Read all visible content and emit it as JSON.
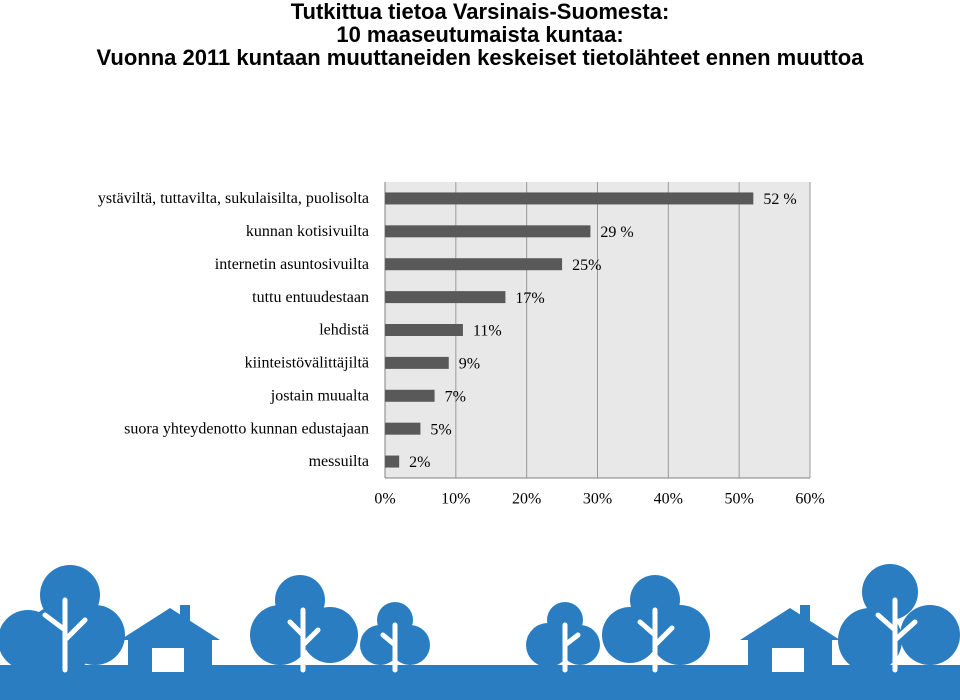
{
  "chart_data": {
    "type": "bar",
    "orientation": "horizontal",
    "title": [
      "Tutkittua tietoa Varsinais-Suomesta:",
      "10 maaseutumaista kuntaa:",
      "Vuonna 2011 kuntaan muuttaneiden keskeiset tietolähteet ennen muuttoa"
    ],
    "categories": [
      "ystäviltä, tuttavilta, sukulaisilta, puolisolta",
      "kunnan kotisivuilta",
      "internetin asuntosivuilta",
      "tuttu entuudestaan",
      "lehdistä",
      "kiinteistövälittäjiltä",
      "jostain muualta",
      "suora yhteydenotto kunnan edustajaan",
      "messuilta"
    ],
    "values": [
      52,
      29,
      25,
      17,
      11,
      9,
      7,
      5,
      2
    ],
    "value_labels": [
      "52 %",
      "29 %",
      "25%",
      "17%",
      "11%",
      "9%",
      "7%",
      "5%",
      "2%"
    ],
    "color": "#595959",
    "xlim": [
      0,
      60
    ],
    "xticks": [
      {
        "value": 0,
        "label": "0%"
      },
      {
        "value": 10,
        "label": "10%"
      },
      {
        "value": 20,
        "label": "20%"
      },
      {
        "value": 30,
        "label": "30%"
      },
      {
        "value": 40,
        "label": "40%"
      },
      {
        "value": 50,
        "label": "50%"
      },
      {
        "value": 60,
        "label": "60%"
      }
    ],
    "grid": true
  }
}
